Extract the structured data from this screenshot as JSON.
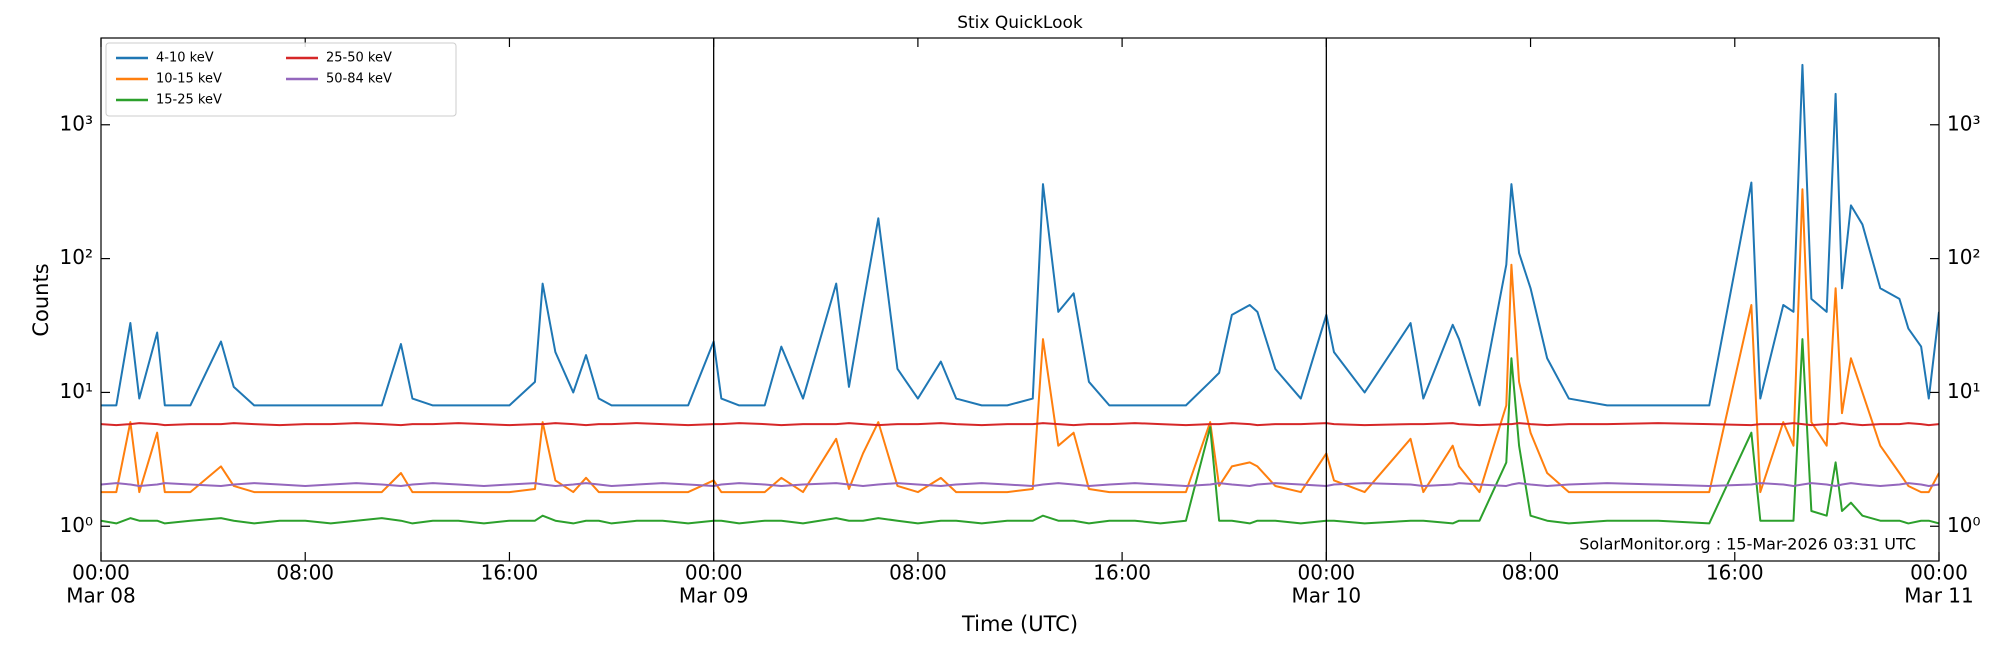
{
  "chart_data": {
    "type": "line",
    "title": "Stix QuickLook",
    "xlabel": "Time (UTC)",
    "ylabel": "Counts",
    "annotation": "SolarMonitor.org : 15-Mar-2026 03:31 UTC",
    "log_y": true,
    "legend": "upper left",
    "legend_columns": 2,
    "xlim": [
      0,
      72
    ],
    "xticks": [
      {
        "value": 0,
        "label": "00:00"
      },
      {
        "value": 8,
        "label": "08:00"
      },
      {
        "value": 16,
        "label": "16:00"
      },
      {
        "value": 24,
        "label": "00:00"
      },
      {
        "value": 32,
        "label": "08:00"
      },
      {
        "value": 40,
        "label": "16:00"
      },
      {
        "value": 48,
        "label": "00:00"
      },
      {
        "value": 56,
        "label": "08:00"
      },
      {
        "value": 64,
        "label": "16:00"
      },
      {
        "value": 72,
        "label": "00:00"
      }
    ],
    "xtick_dates": [
      {
        "value": 0,
        "label": "Mar 08"
      },
      {
        "value": 24,
        "label": "Mar 09"
      },
      {
        "value": 48,
        "label": "Mar 10"
      },
      {
        "value": 72,
        "label": "Mar 11"
      }
    ],
    "ylim": [
      0.55,
      4450
    ],
    "yticks": [
      {
        "value": 1,
        "label": "10⁰"
      },
      {
        "value": 10,
        "label": "10¹"
      },
      {
        "value": 100,
        "label": "10²"
      },
      {
        "value": 1000,
        "label": "10³"
      }
    ],
    "x": [
      0,
      0.6,
      1.15,
      1.5,
      2.2,
      2.5,
      3.5,
      4.7,
      5.2,
      6,
      7,
      8,
      9,
      10,
      11,
      11.75,
      12.2,
      13,
      14,
      15,
      16,
      17,
      17.3,
      17.8,
      18.5,
      19,
      19.5,
      20,
      21,
      22,
      23,
      24,
      24.3,
      25,
      26,
      26.65,
      27.5,
      28.8,
      29.3,
      29.85,
      30.45,
      31.2,
      32,
      32.9,
      33.5,
      34.5,
      35.5,
      36.5,
      36.9,
      37.5,
      38.1,
      38.7,
      39.5,
      40.5,
      41.5,
      42.5,
      43.45,
      43.8,
      44.3,
      45,
      45.3,
      46,
      47,
      48,
      48.3,
      49.5,
      51.3,
      51.8,
      52.95,
      53.2,
      54,
      55.05,
      55.25,
      55.55,
      56,
      56.65,
      57.5,
      59,
      61,
      63,
      64.65,
      65,
      65.9,
      66.3,
      66.65,
      67,
      67.6,
      67.95,
      68.2,
      68.55,
      69,
      69.7,
      70.45,
      70.8,
      71.3,
      71.6,
      72
    ],
    "series": [
      {
        "name": "4-10 keV",
        "color": "#1f77b4",
        "values": [
          8,
          8,
          33,
          9,
          28,
          8,
          8,
          24,
          11,
          8,
          8,
          8,
          8,
          8,
          8,
          23,
          9,
          8,
          8,
          8,
          8,
          12,
          65,
          20,
          10,
          19,
          9,
          8,
          8,
          8,
          8,
          24,
          9,
          8,
          8,
          22,
          9,
          65,
          11,
          45,
          200,
          15,
          9,
          17,
          9,
          8,
          8,
          9,
          360,
          40,
          55,
          12,
          8,
          8,
          8,
          8,
          12,
          14,
          38,
          45,
          40,
          15,
          9,
          38,
          20,
          10,
          33,
          9,
          32,
          25,
          8,
          90,
          360,
          110,
          60,
          18,
          9,
          8,
          8,
          8,
          370,
          9,
          45,
          40,
          2800,
          50,
          40,
          1700,
          60,
          250,
          180,
          60,
          50,
          30,
          22,
          9,
          40
        ]
      },
      {
        "name": "10-15 keV",
        "color": "#ff7f0e",
        "values": [
          1.8,
          1.8,
          6,
          1.8,
          5,
          1.8,
          1.8,
          2.8,
          2,
          1.8,
          1.8,
          1.8,
          1.8,
          1.8,
          1.8,
          2.5,
          1.8,
          1.8,
          1.8,
          1.8,
          1.8,
          1.9,
          6,
          2.2,
          1.8,
          2.3,
          1.8,
          1.8,
          1.8,
          1.8,
          1.8,
          2.2,
          1.8,
          1.8,
          1.8,
          2.3,
          1.8,
          4.5,
          1.9,
          3.5,
          6,
          2,
          1.8,
          2.3,
          1.8,
          1.8,
          1.8,
          1.9,
          25,
          4,
          5,
          1.9,
          1.8,
          1.8,
          1.8,
          1.8,
          6,
          2,
          2.8,
          3,
          2.8,
          2,
          1.8,
          3.5,
          2.2,
          1.8,
          4.5,
          1.8,
          4,
          2.8,
          1.8,
          8,
          90,
          12,
          5,
          2.5,
          1.8,
          1.8,
          1.8,
          1.8,
          45,
          1.8,
          6,
          4,
          330,
          6,
          4,
          60,
          7,
          18,
          10,
          4,
          2.5,
          2,
          1.8,
          1.8,
          2.5
        ]
      },
      {
        "name": "15-25 keV",
        "color": "#2ca02c",
        "values": [
          1.1,
          1.05,
          1.15,
          1.1,
          1.1,
          1.05,
          1.1,
          1.15,
          1.1,
          1.05,
          1.1,
          1.1,
          1.05,
          1.1,
          1.15,
          1.1,
          1.05,
          1.1,
          1.1,
          1.05,
          1.1,
          1.1,
          1.2,
          1.1,
          1.05,
          1.1,
          1.1,
          1.05,
          1.1,
          1.1,
          1.05,
          1.1,
          1.1,
          1.05,
          1.1,
          1.1,
          1.05,
          1.15,
          1.1,
          1.1,
          1.15,
          1.1,
          1.05,
          1.1,
          1.1,
          1.05,
          1.1,
          1.1,
          1.2,
          1.1,
          1.1,
          1.05,
          1.1,
          1.1,
          1.05,
          1.1,
          5.5,
          1.1,
          1.1,
          1.05,
          1.1,
          1.1,
          1.05,
          1.1,
          1.1,
          1.05,
          1.1,
          1.1,
          1.05,
          1.1,
          1.1,
          3,
          18,
          4,
          1.2,
          1.1,
          1.05,
          1.1,
          1.1,
          1.05,
          5,
          1.1,
          1.1,
          1.1,
          25,
          1.3,
          1.2,
          3,
          1.3,
          1.5,
          1.2,
          1.1,
          1.1,
          1.05,
          1.1,
          1.1,
          1.05
        ]
      },
      {
        "name": "25-50 keV",
        "color": "#d62728",
        "values": [
          5.8,
          5.7,
          5.8,
          5.9,
          5.8,
          5.7,
          5.8,
          5.8,
          5.9,
          5.8,
          5.7,
          5.8,
          5.8,
          5.9,
          5.8,
          5.7,
          5.8,
          5.8,
          5.9,
          5.8,
          5.7,
          5.8,
          5.8,
          5.9,
          5.8,
          5.7,
          5.8,
          5.8,
          5.9,
          5.8,
          5.7,
          5.8,
          5.8,
          5.9,
          5.8,
          5.7,
          5.8,
          5.8,
          5.9,
          5.8,
          5.7,
          5.8,
          5.8,
          5.9,
          5.8,
          5.7,
          5.8,
          5.8,
          5.9,
          5.8,
          5.7,
          5.8,
          5.8,
          5.9,
          5.8,
          5.7,
          5.8,
          5.8,
          5.9,
          5.8,
          5.7,
          5.8,
          5.8,
          5.9,
          5.8,
          5.7,
          5.8,
          5.8,
          5.9,
          5.8,
          5.7,
          5.8,
          5.8,
          5.9,
          5.8,
          5.7,
          5.8,
          5.8,
          5.9,
          5.8,
          5.7,
          5.8,
          5.8,
          5.9,
          5.8,
          5.7,
          5.8,
          5.8,
          5.9,
          5.8,
          5.7,
          5.8,
          5.8,
          5.9,
          5.8,
          5.7,
          5.8
        ]
      },
      {
        "name": "50-84 keV",
        "color": "#9467bd",
        "values": [
          2.05,
          2.1,
          2.05,
          2.0,
          2.05,
          2.1,
          2.05,
          2.0,
          2.05,
          2.1,
          2.05,
          2.0,
          2.05,
          2.1,
          2.05,
          2.0,
          2.05,
          2.1,
          2.05,
          2.0,
          2.05,
          2.1,
          2.05,
          2.0,
          2.05,
          2.1,
          2.05,
          2.0,
          2.05,
          2.1,
          2.05,
          2.0,
          2.05,
          2.1,
          2.05,
          2.0,
          2.05,
          2.1,
          2.05,
          2.0,
          2.05,
          2.1,
          2.05,
          2.0,
          2.05,
          2.1,
          2.05,
          2.0,
          2.05,
          2.1,
          2.05,
          2.0,
          2.05,
          2.1,
          2.05,
          2.0,
          2.05,
          2.1,
          2.05,
          2.0,
          2.05,
          2.1,
          2.05,
          2.0,
          2.05,
          2.1,
          2.05,
          2.0,
          2.05,
          2.1,
          2.05,
          2.0,
          2.05,
          2.1,
          2.05,
          2.0,
          2.05,
          2.1,
          2.05,
          2.0,
          2.05,
          2.1,
          2.05,
          2.0,
          2.05,
          2.1,
          2.05,
          2.0,
          2.05,
          2.1,
          2.05,
          2.0,
          2.05,
          2.1,
          2.05,
          2.0,
          2.05
        ]
      }
    ]
  }
}
